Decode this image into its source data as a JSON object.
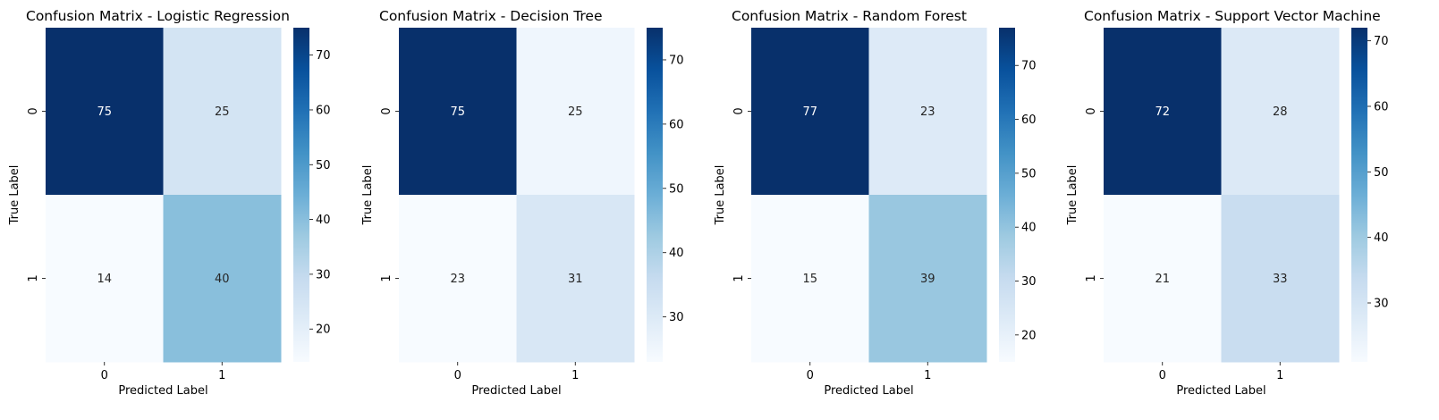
{
  "chart_data": [
    {
      "type": "heatmap",
      "title": "Confusion Matrix - Logistic Regression",
      "xlabel": "Predicted Label",
      "ylabel": "True Label",
      "x_categories": [
        "0",
        "1"
      ],
      "y_categories": [
        "0",
        "1"
      ],
      "values": [
        [
          75,
          25
        ],
        [
          14,
          40
        ]
      ],
      "colormap": "Blues",
      "color_range": [
        14,
        75
      ],
      "colorbar_ticks": [
        20,
        30,
        40,
        50,
        60,
        70
      ]
    },
    {
      "type": "heatmap",
      "title": "Confusion Matrix - Decision Tree",
      "xlabel": "Predicted Label",
      "ylabel": "True Label",
      "x_categories": [
        "0",
        "1"
      ],
      "y_categories": [
        "0",
        "1"
      ],
      "values": [
        [
          75,
          25
        ],
        [
          23,
          31
        ]
      ],
      "colormap": "Blues",
      "color_range": [
        23,
        75
      ],
      "colorbar_ticks": [
        30,
        40,
        50,
        60,
        70
      ]
    },
    {
      "type": "heatmap",
      "title": "Confusion Matrix - Random Forest",
      "xlabel": "Predicted Label",
      "ylabel": "True Label",
      "x_categories": [
        "0",
        "1"
      ],
      "y_categories": [
        "0",
        "1"
      ],
      "values": [
        [
          77,
          23
        ],
        [
          15,
          39
        ]
      ],
      "colormap": "Blues",
      "color_range": [
        15,
        77
      ],
      "colorbar_ticks": [
        20,
        30,
        40,
        50,
        60,
        70
      ]
    },
    {
      "type": "heatmap",
      "title": "Confusion Matrix - Support Vector Machine",
      "xlabel": "Predicted Label",
      "ylabel": "True Label",
      "x_categories": [
        "0",
        "1"
      ],
      "y_categories": [
        "0",
        "1"
      ],
      "values": [
        [
          72,
          28
        ],
        [
          21,
          33
        ]
      ],
      "colormap": "Blues",
      "color_range": [
        21,
        72
      ],
      "colorbar_ticks": [
        30,
        40,
        50,
        60,
        70
      ]
    }
  ]
}
